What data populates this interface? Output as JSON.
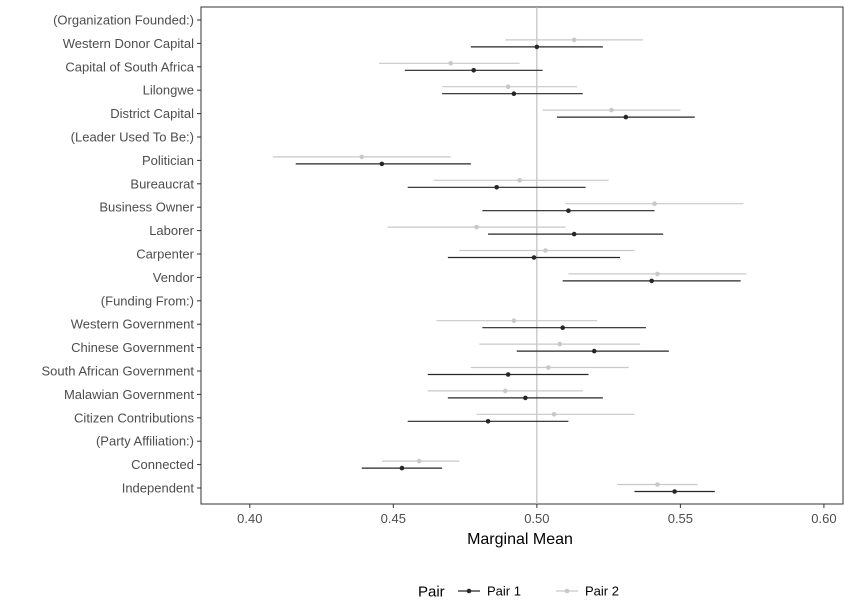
{
  "chart_data": {
    "type": "scatter",
    "subtype": "dot-and-whisker",
    "title": "",
    "xlabel": "Marginal Mean",
    "ylabel": "",
    "xlim": [
      0.383,
      0.607
    ],
    "x_ticks": [
      "0.40",
      "0.45",
      "0.50",
      "0.55",
      "0.60"
    ],
    "x_tick_values": [
      0.4,
      0.45,
      0.5,
      0.55,
      0.6
    ],
    "reference_line": 0.5,
    "grid": false,
    "legend_position": "bottom",
    "legend_title": "Pair",
    "categories": [
      "(Organization Founded:)",
      "Western Donor Capital",
      "Capital of South Africa",
      "Lilongwe",
      "District Capital",
      "(Leader Used To Be:)",
      "Politician",
      "Bureaucrat",
      "Business Owner",
      "Laborer",
      "Carpenter",
      "Vendor",
      "(Funding From:)",
      "Western Government",
      "Chinese Government",
      "South African Government",
      "Malawian Government",
      "Citizen Contributions",
      "(Party Affiliation:)",
      "Connected",
      "Independent"
    ],
    "series": [
      {
        "name": "Pair 1",
        "color": "#262626",
        "estimate": [
          null,
          0.5,
          0.478,
          0.492,
          0.531,
          null,
          0.446,
          0.486,
          0.511,
          0.513,
          0.499,
          0.54,
          null,
          0.509,
          0.52,
          0.49,
          0.496,
          0.483,
          null,
          0.453,
          0.548
        ],
        "lower": [
          null,
          0.477,
          0.454,
          0.467,
          0.507,
          null,
          0.416,
          0.455,
          0.481,
          0.483,
          0.469,
          0.509,
          null,
          0.481,
          0.493,
          0.462,
          0.469,
          0.455,
          null,
          0.439,
          0.534
        ],
        "upper": [
          null,
          0.523,
          0.502,
          0.516,
          0.555,
          null,
          0.477,
          0.517,
          0.541,
          0.544,
          0.529,
          0.571,
          null,
          0.538,
          0.546,
          0.518,
          0.523,
          0.511,
          null,
          0.467,
          0.562
        ]
      },
      {
        "name": "Pair 2",
        "color": "#c8c8c8",
        "estimate": [
          null,
          0.513,
          0.47,
          0.49,
          0.526,
          null,
          0.439,
          0.494,
          0.541,
          0.479,
          0.503,
          0.542,
          null,
          0.492,
          0.508,
          0.504,
          0.489,
          0.506,
          null,
          0.459,
          0.542
        ],
        "lower": [
          null,
          0.489,
          0.445,
          0.467,
          0.502,
          null,
          0.408,
          0.464,
          0.51,
          0.448,
          0.473,
          0.511,
          null,
          0.465,
          0.48,
          0.477,
          0.462,
          0.479,
          null,
          0.446,
          0.528
        ],
        "upper": [
          null,
          0.537,
          0.494,
          0.514,
          0.55,
          null,
          0.47,
          0.525,
          0.572,
          0.51,
          0.534,
          0.573,
          null,
          0.521,
          0.536,
          0.532,
          0.516,
          0.534,
          null,
          0.473,
          0.556
        ]
      }
    ]
  }
}
